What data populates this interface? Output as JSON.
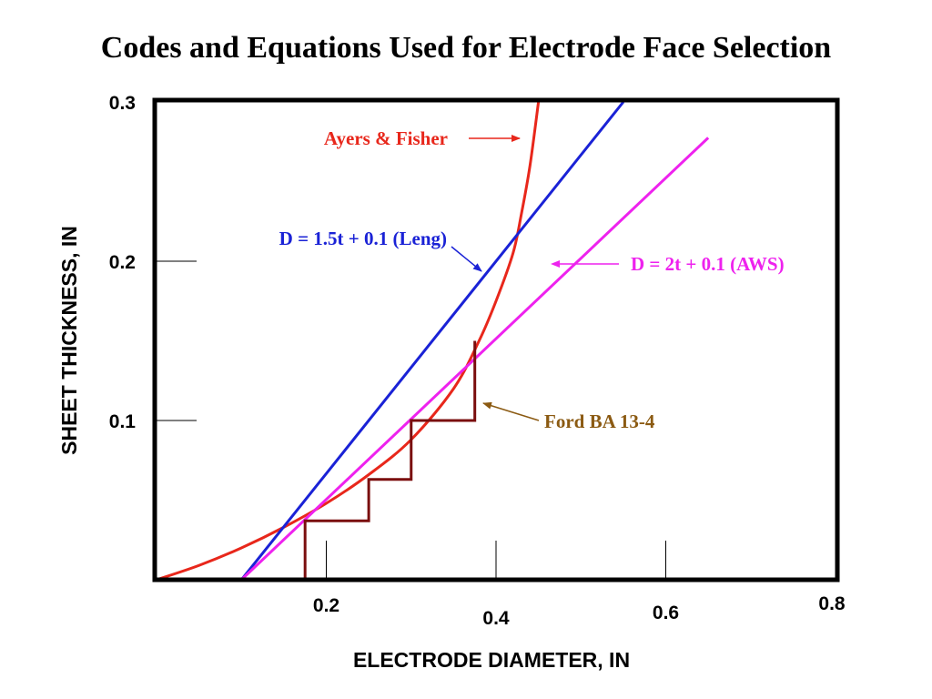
{
  "colors": {
    "ayers_fisher": "#e8271b",
    "leng": "#1a22d6",
    "aws": "#ee22ee",
    "ford": "#7a0e0e",
    "ford_label": "#8b5a12",
    "axes": "#000000"
  },
  "chart_data": {
    "type": "line",
    "title": "Codes and Equations Used for Electrode Face Selection",
    "xlabel": "ELECTRODE DIAMETER, IN",
    "ylabel": "SHEET THICKNESS, IN",
    "xlim": [
      0.0,
      0.8
    ],
    "ylim": [
      0.0,
      0.3
    ],
    "x_ticks": [
      {
        "value": 0.2,
        "label": "0.2"
      },
      {
        "value": 0.4,
        "label": "0.4"
      },
      {
        "value": 0.6,
        "label": "0.6"
      },
      {
        "value": 0.8,
        "label": "0.8"
      }
    ],
    "y_ticks": [
      {
        "value": 0.1,
        "label": "0.1"
      },
      {
        "value": 0.2,
        "label": "0.2"
      },
      {
        "value": 0.3,
        "label": "0.3"
      }
    ],
    "grid": false,
    "series": [
      {
        "name": "Ayers & Fisher",
        "key": "ayers_fisher",
        "x": [
          0.0,
          0.05,
          0.1,
          0.15,
          0.2,
          0.25,
          0.3,
          0.35,
          0.38,
          0.4,
          0.42,
          0.43,
          0.44,
          0.45
        ],
        "y": [
          0.0,
          0.009,
          0.02,
          0.033,
          0.048,
          0.066,
          0.088,
          0.12,
          0.15,
          0.175,
          0.205,
          0.23,
          0.26,
          0.3
        ]
      },
      {
        "name": "D = 1.5t + 0.1 (Leng)",
        "key": "leng",
        "x": [
          0.1,
          0.55
        ],
        "y": [
          0.0,
          0.3
        ]
      },
      {
        "name": "D = 2t + 0.1 (AWS)",
        "key": "aws",
        "x": [
          0.1,
          0.65
        ],
        "y": [
          0.0,
          0.2775
        ]
      },
      {
        "name": "Ford BA 13-4",
        "key": "ford",
        "x": [
          0.175,
          0.175,
          0.25,
          0.25,
          0.3,
          0.3,
          0.375,
          0.375
        ],
        "y": [
          0.0,
          0.037,
          0.037,
          0.063,
          0.063,
          0.1,
          0.1,
          0.15
        ]
      }
    ],
    "annotations": [
      {
        "key": "ayers_fisher",
        "text": "Ayers & Fisher"
      },
      {
        "key": "leng",
        "text": "D = 1.5t + 0.1 (Leng)"
      },
      {
        "key": "aws",
        "text": "D = 2t + 0.1 (AWS)"
      },
      {
        "key": "ford",
        "text": "Ford BA 13-4"
      }
    ]
  }
}
